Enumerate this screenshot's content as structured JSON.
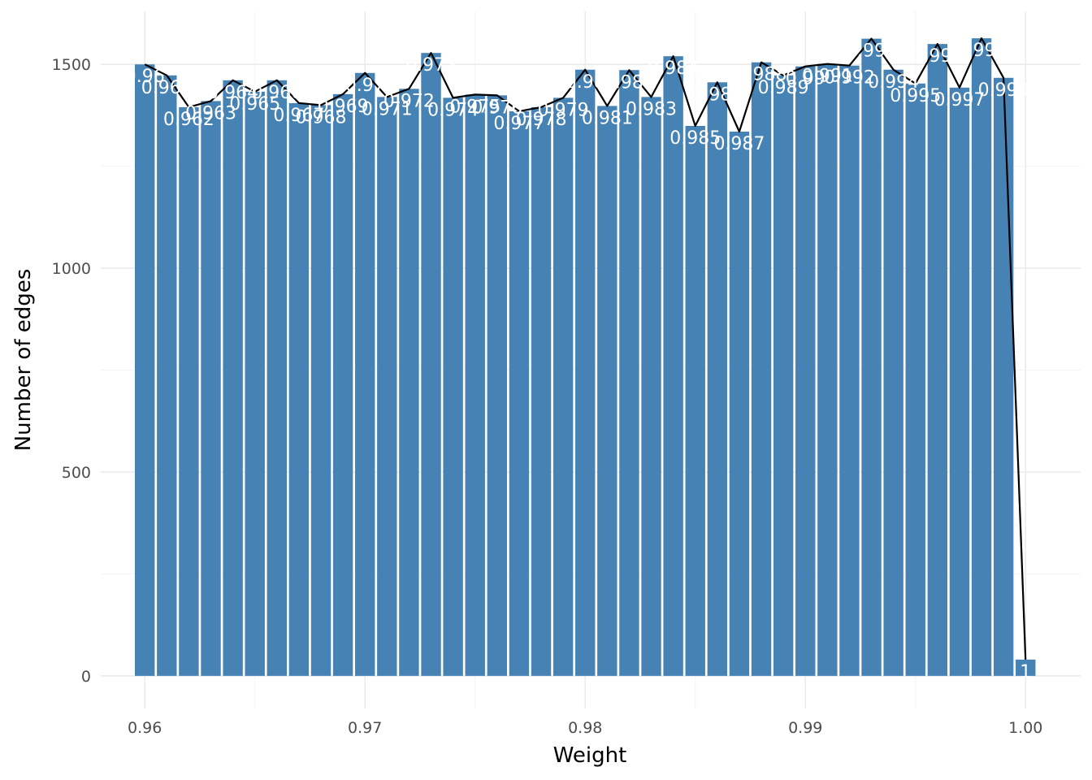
{
  "chart_data": {
    "type": "bar",
    "title": "",
    "xlabel": "Weight",
    "ylabel": "Number of edges",
    "xlim": [
      0.958,
      1.0025
    ],
    "ylim": [
      -80,
      1630
    ],
    "x_ticks": [
      {
        "value": 0.96,
        "label": "0.96"
      },
      {
        "value": 0.97,
        "label": "0.97"
      },
      {
        "value": 0.98,
        "label": "0.98"
      },
      {
        "value": 0.99,
        "label": "0.99"
      },
      {
        "value": 1.0,
        "label": "1.00"
      }
    ],
    "y_ticks": [
      {
        "value": 0,
        "label": "0"
      },
      {
        "value": 500,
        "label": "500"
      },
      {
        "value": 1000,
        "label": "1000"
      },
      {
        "value": 1500,
        "label": "1500"
      }
    ],
    "grid": true,
    "bar_color": "#4682b4",
    "line_color": "#000000",
    "x": [
      0.96,
      0.961,
      0.962,
      0.963,
      0.964,
      0.965,
      0.966,
      0.967,
      0.968,
      0.969,
      0.97,
      0.971,
      0.972,
      0.973,
      0.974,
      0.975,
      0.976,
      0.977,
      0.978,
      0.979,
      0.98,
      0.981,
      0.982,
      0.983,
      0.984,
      0.985,
      0.986,
      0.987,
      0.988,
      0.989,
      0.99,
      0.991,
      0.992,
      0.993,
      0.994,
      0.995,
      0.996,
      0.997,
      0.998,
      0.999,
      1.0
    ],
    "values": [
      1500,
      1473,
      1395,
      1410,
      1461,
      1433,
      1461,
      1405,
      1400,
      1427,
      1479,
      1420,
      1440,
      1528,
      1418,
      1426,
      1424,
      1385,
      1395,
      1418,
      1487,
      1398,
      1486,
      1420,
      1520,
      1349,
      1456,
      1335,
      1505,
      1473,
      1495,
      1501,
      1497,
      1563,
      1487,
      1453,
      1550,
      1443,
      1564,
      1467,
      40
    ],
    "labels": [
      "0.96",
      "0.961",
      "0.962",
      "0.963",
      "0.964",
      "0.965",
      "0.966",
      "0.967",
      "0.968",
      "0.969",
      "0.97",
      "0.971",
      "0.972",
      "0.973",
      "0.974",
      "0.975",
      "0.976",
      "0.977",
      "0.978",
      "0.979",
      "0.98",
      "0.981",
      "0.982",
      "0.983",
      "0.984",
      "0.985",
      "0.986",
      "0.987",
      "0.988",
      "0.989",
      "0.99",
      "0.991",
      "0.992",
      "0.993",
      "0.994",
      "0.995",
      "0.996",
      "0.997",
      "0.998",
      "0.999",
      "1"
    ]
  }
}
